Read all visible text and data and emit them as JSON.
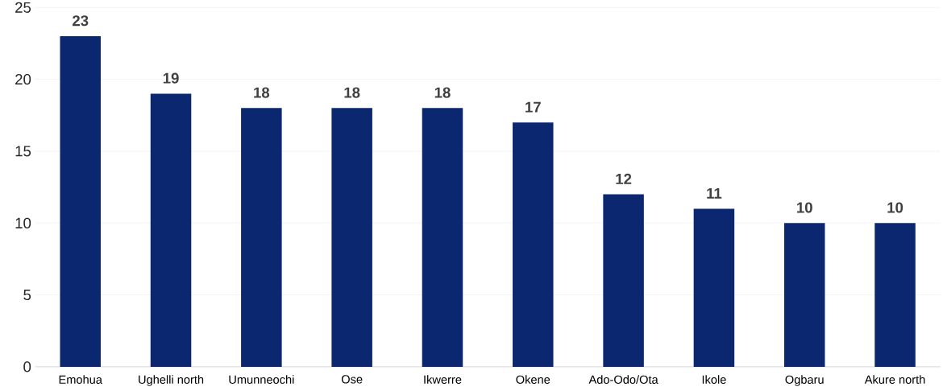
{
  "chart_data": {
    "type": "bar",
    "categories": [
      "Emohua",
      "Ughelli north",
      "Umunneochi",
      "Ose",
      "Ikwerre",
      "Okene",
      "Ado-Odo/Ota",
      "Ikole",
      "Ogbaru",
      "Akure north"
    ],
    "values": [
      23,
      19,
      18,
      18,
      18,
      17,
      12,
      11,
      10,
      10
    ],
    "color": "#0b2770",
    "ylim": [
      0,
      25
    ],
    "yticks": [
      0,
      5,
      10,
      15,
      20,
      25
    ],
    "grid": "y",
    "data_labels": true
  }
}
